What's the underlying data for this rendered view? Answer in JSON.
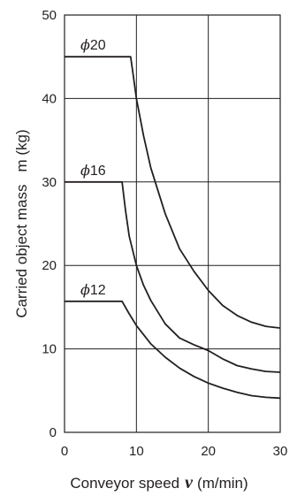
{
  "chart_data": {
    "type": "line",
    "title": "",
    "xlabel": {
      "text": "Conveyor speed",
      "symbol": "v",
      "unit": "(m/min)"
    },
    "ylabel": {
      "text": "Carried object mass",
      "unit": "m (kg)"
    },
    "xlim": [
      0,
      30
    ],
    "ylim": [
      0,
      50
    ],
    "xticks": [
      "0",
      "10",
      "20",
      "30"
    ],
    "yticks": [
      "0",
      "10",
      "20",
      "30",
      "40",
      "50"
    ],
    "grid": true,
    "series": [
      {
        "name": "ϕ20",
        "symbol": "ϕ",
        "size": "20",
        "x": [
          0,
          9.2,
          9.6,
          10.0,
          11.0,
          12.0,
          14.0,
          16.0,
          18.0,
          20.0,
          22.0,
          24.0,
          26.0,
          28.0,
          29.0,
          30.0
        ],
        "y": [
          45,
          45,
          42.5,
          40.0,
          35.5,
          31.7,
          26.2,
          22.0,
          19.3,
          17.0,
          15.2,
          14.0,
          13.2,
          12.7,
          12.6,
          12.5
        ]
      },
      {
        "name": "ϕ16",
        "symbol": "ϕ",
        "size": "16",
        "x": [
          0,
          8.0,
          8.5,
          9.0,
          10.0,
          11.0,
          12.0,
          14.0,
          16.0,
          18.0,
          20.0,
          22.0,
          24.0,
          26.0,
          28.0,
          30.0
        ],
        "y": [
          30,
          30,
          26.5,
          23.5,
          20.0,
          17.6,
          15.8,
          13.0,
          11.3,
          10.5,
          9.8,
          8.8,
          8.0,
          7.6,
          7.3,
          7.2
        ]
      },
      {
        "name": "ϕ12",
        "symbol": "ϕ",
        "size": "12",
        "x": [
          0,
          8.0,
          9.0,
          10.0,
          12.0,
          14.0,
          16.0,
          18.0,
          20.0,
          22.0,
          24.0,
          26.0,
          28.0,
          30.0
        ],
        "y": [
          15.7,
          15.7,
          14.2,
          12.8,
          10.6,
          9.0,
          7.7,
          6.7,
          5.9,
          5.3,
          4.8,
          4.4,
          4.2,
          4.1
        ]
      }
    ],
    "colors": {
      "line": "#231f20",
      "grid": "#231f20",
      "text": "#231f20",
      "background": "#ffffff"
    }
  }
}
